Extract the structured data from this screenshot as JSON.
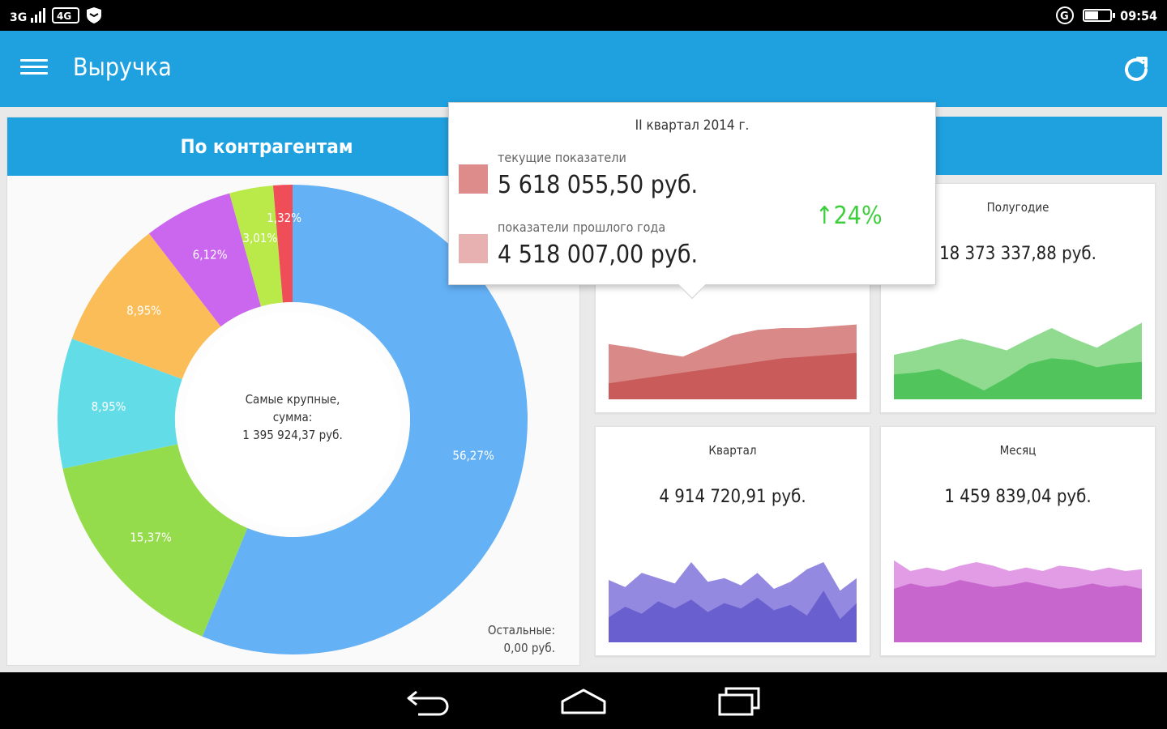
{
  "status_bar": {
    "signal": "3G",
    "network": "4G",
    "time": "09:54"
  },
  "app_bar": {
    "title": "Выручка"
  },
  "left_panel": {
    "title": "По контрагентам",
    "center_text": [
      "Самые крупные,",
      "сумма:",
      "1 395 924,37 руб."
    ],
    "rest_text": [
      "Остальные:",
      "0,00 руб."
    ]
  },
  "donut": {
    "segments": [
      {
        "label": "56,27%",
        "value": 56.27,
        "color": "#64b1f6"
      },
      {
        "label": "15,37%",
        "value": 15.37,
        "color": "#95dc4d"
      },
      {
        "label": "8,95%",
        "value": 8.95,
        "color": "#62dde8"
      },
      {
        "label": "8,95%",
        "value": 8.95,
        "color": "#fbbd58"
      },
      {
        "label": "6,12%",
        "value": 6.12,
        "color": "#cb66ee"
      },
      {
        "label": "3,01%",
        "value": 3.01,
        "color": "#b9ea4a"
      },
      {
        "label": "1,32%",
        "value": 1.32,
        "color": "#ef4d58"
      }
    ]
  },
  "popup": {
    "period": "II квартал 2014 г.",
    "current_label": "текущие показатели",
    "current_value": "5 618 055,50 руб.",
    "previous_label": "показатели прошлого года",
    "previous_value": "4 518 007,00 руб.",
    "change": "24%",
    "current_color": "#de8b8b",
    "previous_color": "#e8b1b1"
  },
  "cards": [
    {
      "title": "",
      "value": "",
      "back_color": "#d98a88",
      "front_color": "#c95b5b",
      "back": [
        0.62,
        0.58,
        0.52,
        0.48,
        0.6,
        0.72,
        0.78,
        0.8,
        0.8,
        0.82,
        0.84
      ],
      "front": [
        0.18,
        0.22,
        0.26,
        0.3,
        0.34,
        0.38,
        0.42,
        0.46,
        0.48,
        0.5,
        0.52
      ]
    },
    {
      "title": "Полугодие",
      "value": "18 373 337,88 руб.",
      "back_color": "#90db90",
      "front_color": "#52c45c",
      "back": [
        0.5,
        0.55,
        0.62,
        0.68,
        0.62,
        0.55,
        0.68,
        0.8,
        0.68,
        0.58,
        0.72,
        0.86
      ],
      "front": [
        0.28,
        0.3,
        0.34,
        0.22,
        0.1,
        0.24,
        0.4,
        0.46,
        0.44,
        0.36,
        0.4,
        0.42
      ]
    },
    {
      "title": "Квартал",
      "value": "4 914 720,91 руб.",
      "back_color": "#9489e0",
      "front_color": "#6a5fcf",
      "back": [
        0.7,
        0.62,
        0.78,
        0.72,
        0.66,
        0.9,
        0.68,
        0.72,
        0.64,
        0.78,
        0.6,
        0.68,
        0.82,
        0.9,
        0.58,
        0.72
      ],
      "front": [
        0.28,
        0.4,
        0.32,
        0.46,
        0.38,
        0.48,
        0.34,
        0.44,
        0.38,
        0.5,
        0.36,
        0.42,
        0.3,
        0.58,
        0.26,
        0.44
      ]
    },
    {
      "title": "Месяц",
      "value": "1 459 839,04 руб.",
      "back_color": "#e19ce5",
      "front_color": "#c766cc",
      "back": [
        0.92,
        0.8,
        0.84,
        0.8,
        0.86,
        0.9,
        0.86,
        0.8,
        0.84,
        0.8,
        0.86,
        0.84,
        0.8,
        0.84,
        0.8,
        0.82
      ],
      "front": [
        0.6,
        0.66,
        0.62,
        0.64,
        0.7,
        0.66,
        0.62,
        0.64,
        0.68,
        0.64,
        0.6,
        0.62,
        0.66,
        0.62,
        0.64,
        0.6
      ]
    }
  ]
}
